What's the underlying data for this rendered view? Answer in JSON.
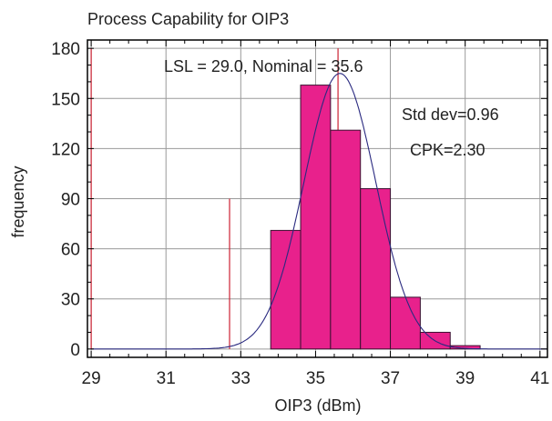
{
  "chart_data": {
    "type": "bar",
    "title": "Process Capability for OIP3",
    "xlabel": "OIP3 (dBm)",
    "ylabel": "frequency",
    "xlim": [
      28.9,
      41.2
    ],
    "ylim": [
      -5,
      185
    ],
    "xticks": [
      29,
      31,
      33,
      35,
      37,
      39,
      41
    ],
    "yticks": [
      0,
      30,
      60,
      90,
      120,
      150,
      180
    ],
    "grid": true,
    "bin_width": 0.8,
    "bins": [
      {
        "x0": 33.8,
        "x1": 34.6,
        "count": 71
      },
      {
        "x0": 34.6,
        "x1": 35.4,
        "count": 158
      },
      {
        "x0": 35.4,
        "x1": 36.2,
        "count": 131
      },
      {
        "x0": 36.2,
        "x1": 37.0,
        "count": 96
      },
      {
        "x0": 37.0,
        "x1": 37.8,
        "count": 31
      },
      {
        "x0": 37.8,
        "x1": 38.6,
        "count": 10
      },
      {
        "x0": 38.6,
        "x1": 39.4,
        "count": 2
      }
    ],
    "fit_curve": {
      "mean": 35.65,
      "std_dev": 0.96,
      "peak": 165
    },
    "reference_lines": [
      {
        "name": "LSL",
        "value": 29.0,
        "top": 180
      },
      {
        "name": "Nominal",
        "value": 35.6,
        "top": 180
      },
      {
        "name": "Lower marker",
        "value": 32.7,
        "top": 90
      }
    ],
    "annotations": {
      "spec": "LSL = 29.0, Nominal = 35.6",
      "std_dev": "Std dev=0.96",
      "cpk": "CPK=2.30"
    },
    "colors": {
      "bar_fill": "#e8218c",
      "bar_stroke": "#3a1030",
      "curve": "#2a2a80",
      "ref_line": "#cc2233",
      "grid": "#9a9a9a"
    }
  }
}
